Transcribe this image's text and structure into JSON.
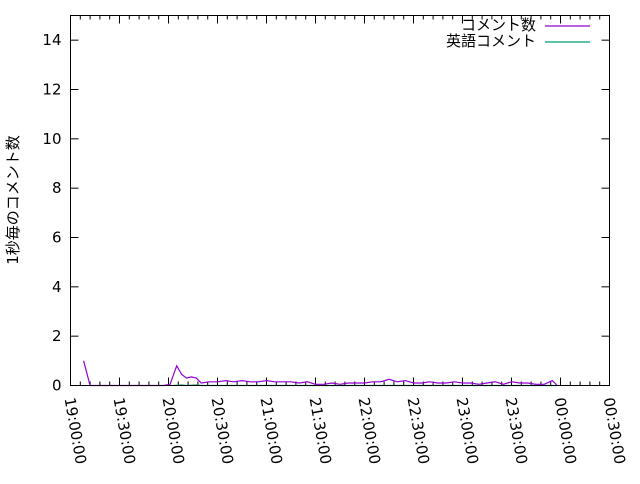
{
  "chart_data": {
    "type": "line",
    "title": "",
    "xlabel": "",
    "ylabel": "1秒毎のコメント数",
    "ylim": [
      0,
      15
    ],
    "xlim": [
      "19:00:00",
      "00:30:00"
    ],
    "x_ticks": [
      "19:00:00",
      "19:30:00",
      "20:00:00",
      "20:30:00",
      "21:00:00",
      "21:30:00",
      "22:00:00",
      "22:30:00",
      "23:00:00",
      "23:30:00",
      "00:00:00",
      "00:30:00"
    ],
    "y_ticks": [
      0,
      2,
      4,
      6,
      8,
      10,
      12,
      14
    ],
    "grid": false,
    "legend_position": "top-right",
    "series": [
      {
        "name": "コメント数",
        "color": "#9400d3",
        "x": [
          "19:08",
          "19:12",
          "19:52",
          "19:57",
          "20:01",
          "20:05",
          "20:08",
          "20:11",
          "20:14",
          "20:17",
          "20:20",
          "20:25",
          "20:30",
          "20:35",
          "20:40",
          "20:45",
          "20:50",
          "20:55",
          "21:00",
          "21:05",
          "21:10",
          "21:15",
          "21:20",
          "21:25",
          "21:30",
          "21:35",
          "21:40",
          "21:45",
          "21:50",
          "21:55",
          "22:00",
          "22:05",
          "22:10",
          "22:15",
          "22:20",
          "22:25",
          "22:30",
          "22:35",
          "22:40",
          "22:45",
          "22:50",
          "22:55",
          "23:00",
          "23:05",
          "23:10",
          "23:15",
          "23:20",
          "23:25",
          "23:30",
          "23:35",
          "23:40",
          "23:45",
          "23:50",
          "23:55",
          "23:58"
        ],
        "values": [
          1.0,
          0,
          0,
          0,
          0.05,
          0.8,
          0.45,
          0.3,
          0.35,
          0.3,
          0.1,
          0.15,
          0.15,
          0.2,
          0.15,
          0.2,
          0.15,
          0.15,
          0.2,
          0.15,
          0.15,
          0.15,
          0.1,
          0.15,
          0.05,
          0.05,
          0.1,
          0.05,
          0.1,
          0.1,
          0.1,
          0.15,
          0.15,
          0.25,
          0.15,
          0.2,
          0.1,
          0.1,
          0.15,
          0.1,
          0.1,
          0.15,
          0.1,
          0.1,
          0.05,
          0.1,
          0.15,
          0.05,
          0.15,
          0.1,
          0.1,
          0.05,
          0.05,
          0.2,
          0
        ]
      },
      {
        "name": "英語コメント",
        "color": "#009e73",
        "x": [
          "20:03",
          "20:08",
          "20:11",
          "20:17",
          "20:20",
          "22:00",
          "23:00",
          "23:58"
        ],
        "values": [
          0,
          0.02,
          0,
          0.02,
          0,
          0,
          0,
          0
        ]
      }
    ]
  }
}
